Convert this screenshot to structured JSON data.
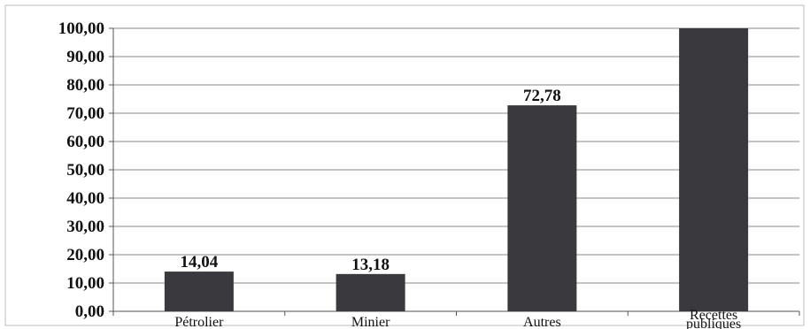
{
  "chart_data": {
    "type": "bar",
    "title": "",
    "xlabel": "",
    "ylabel": "",
    "categories": [
      "Pétrolier",
      "Minier",
      "Autres",
      "Recettes publiques"
    ],
    "values": [
      14.04,
      13.18,
      72.78,
      100.0
    ],
    "data_labels": [
      "14,04",
      "13,18",
      "72,78",
      ""
    ],
    "ylim": [
      0,
      100
    ],
    "y_ticks": [
      0,
      10,
      20,
      30,
      40,
      50,
      60,
      70,
      80,
      90,
      100
    ],
    "y_tick_labels": [
      "0,00",
      "10,00",
      "20,00",
      "30,00",
      "40,00",
      "50,00",
      "60,00",
      "70,00",
      "80,00",
      "90,00",
      "100,00"
    ],
    "grid": true,
    "legend": "none",
    "colors": {
      "bar": "#3a3a3e",
      "grid": "#8a8a8a",
      "axis": "#555555",
      "text": "#111111"
    }
  }
}
